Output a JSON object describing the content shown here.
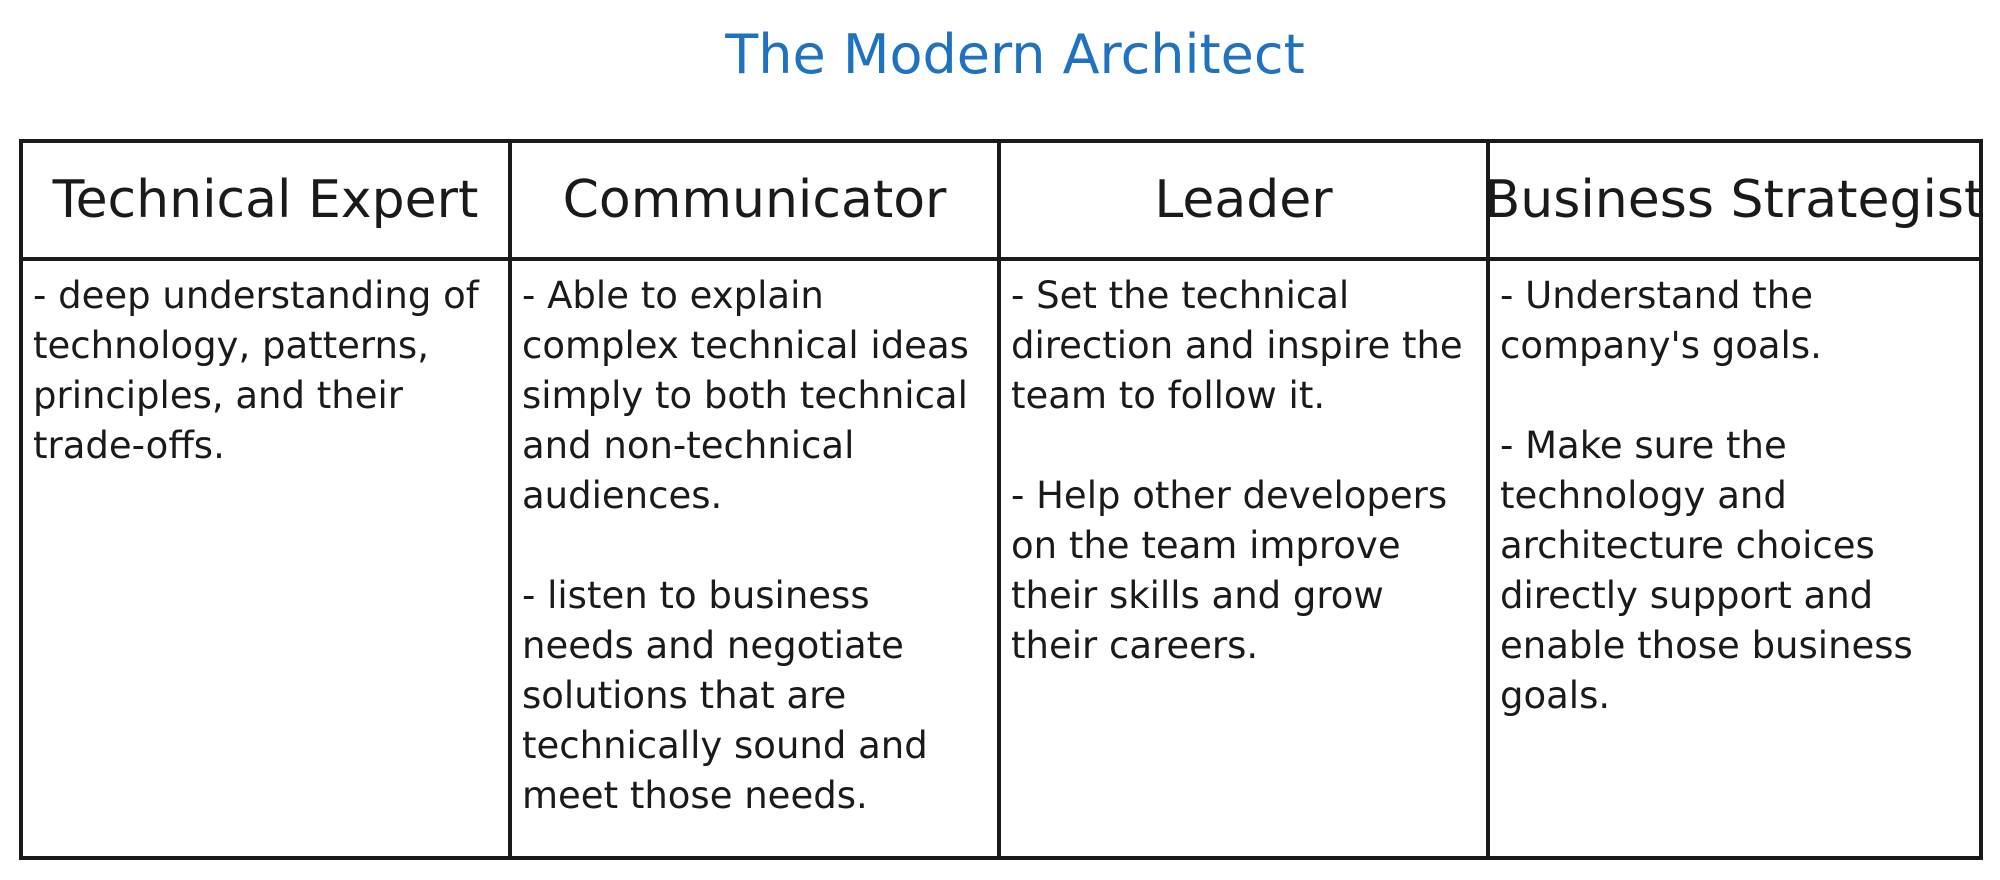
{
  "title": "The Modern Architect",
  "columns": [
    {
      "heading": "Technical Expert",
      "paragraphs": [
        "- deep understanding of technology, patterns, principles, and their trade-offs."
      ]
    },
    {
      "heading": "Communicator",
      "paragraphs": [
        "- Able to explain complex technical ideas simply to both technical and non-technical audiences.",
        "- listen to business needs and negotiate solutions that are technically sound and meet those needs."
      ]
    },
    {
      "heading": "Leader",
      "paragraphs": [
        "- Set the technical direction and inspire the team to follow it.",
        "-  Help other developers on the team improve their skills and grow their careers."
      ]
    },
    {
      "heading": "Business Strategist",
      "paragraphs": [
        "- Understand the company's goals.",
        "-  Make sure the technology and architecture choices directly support and enable those business goals."
      ]
    }
  ],
  "colors": {
    "title": "#1f72c0",
    "text": "#1a1a1a",
    "border": "#1a1a1a"
  }
}
